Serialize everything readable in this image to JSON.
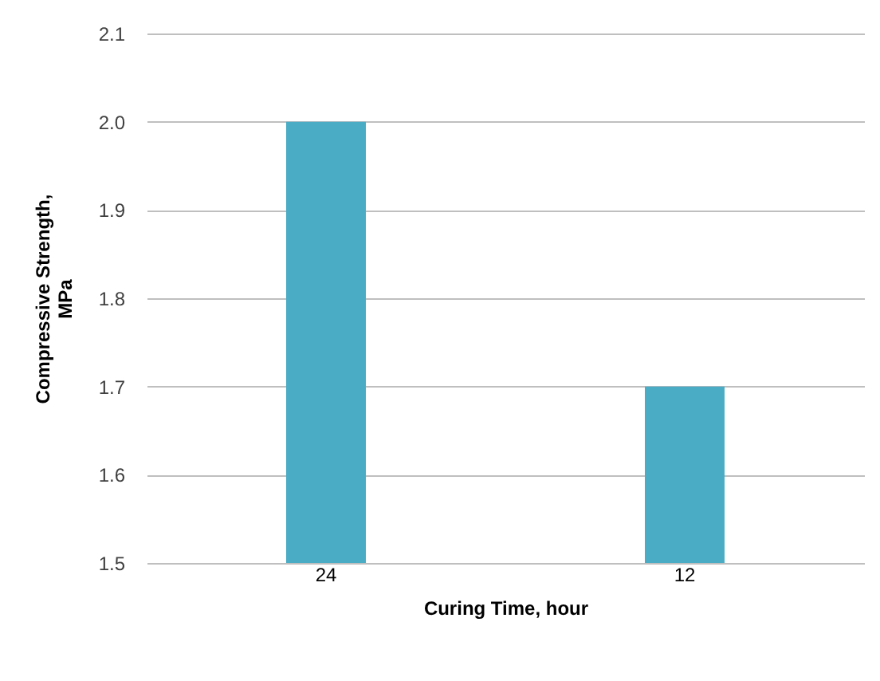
{
  "chart_data": {
    "type": "bar",
    "xlabel": "Curing Time, hour",
    "ylabel": "Compressive Strength, MPa",
    "categories": [
      "24",
      "12"
    ],
    "values": [
      2.0,
      1.7
    ],
    "color": "#4bacc6",
    "ylim": [
      1.5,
      2.1
    ],
    "yticks": [
      1.5,
      1.6,
      1.7,
      1.8,
      1.9,
      {
        "value": 2.0,
        "label": "2.0"
      },
      2.1
    ],
    "grid": "y"
  }
}
